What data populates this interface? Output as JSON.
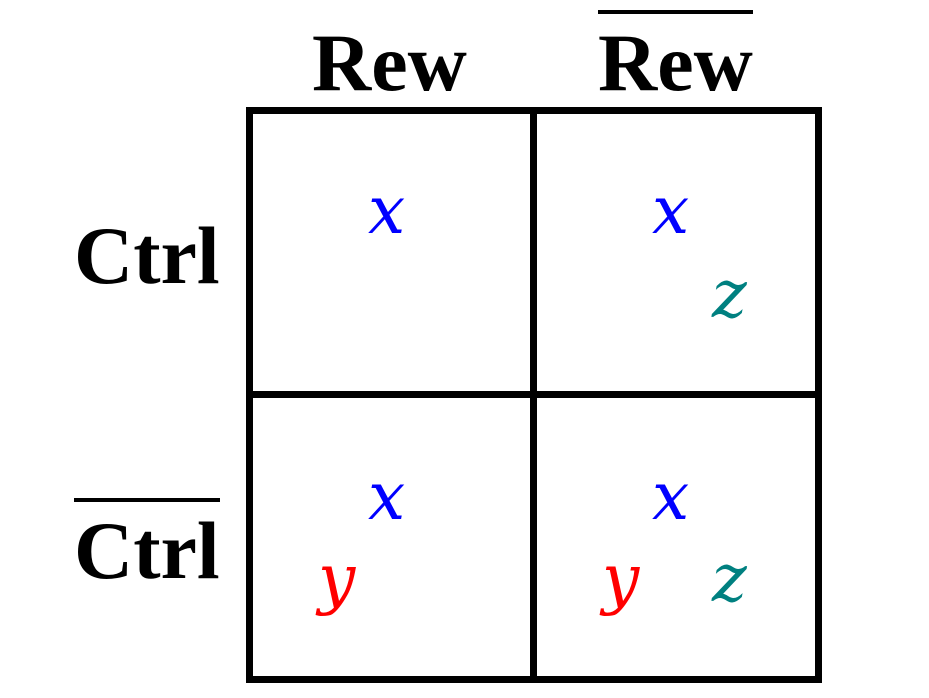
{
  "columns": [
    {
      "label": "Rew",
      "negated": false
    },
    {
      "label": "Rew",
      "negated": true
    }
  ],
  "rows": [
    {
      "label": "Ctrl",
      "negated": false
    },
    {
      "label": "Ctrl",
      "negated": true
    }
  ],
  "colors": {
    "x": "#0000ff",
    "y": "#ff0000",
    "z": "#008080",
    "border": "#000000"
  },
  "cells": {
    "ctrl_rew": {
      "x": "x"
    },
    "ctrl_notrew": {
      "x": "x",
      "z": "z"
    },
    "notctrl_rew": {
      "x": "x",
      "y": "y"
    },
    "notctrl_notrew": {
      "x": "x",
      "y": "y",
      "z": "z"
    }
  }
}
